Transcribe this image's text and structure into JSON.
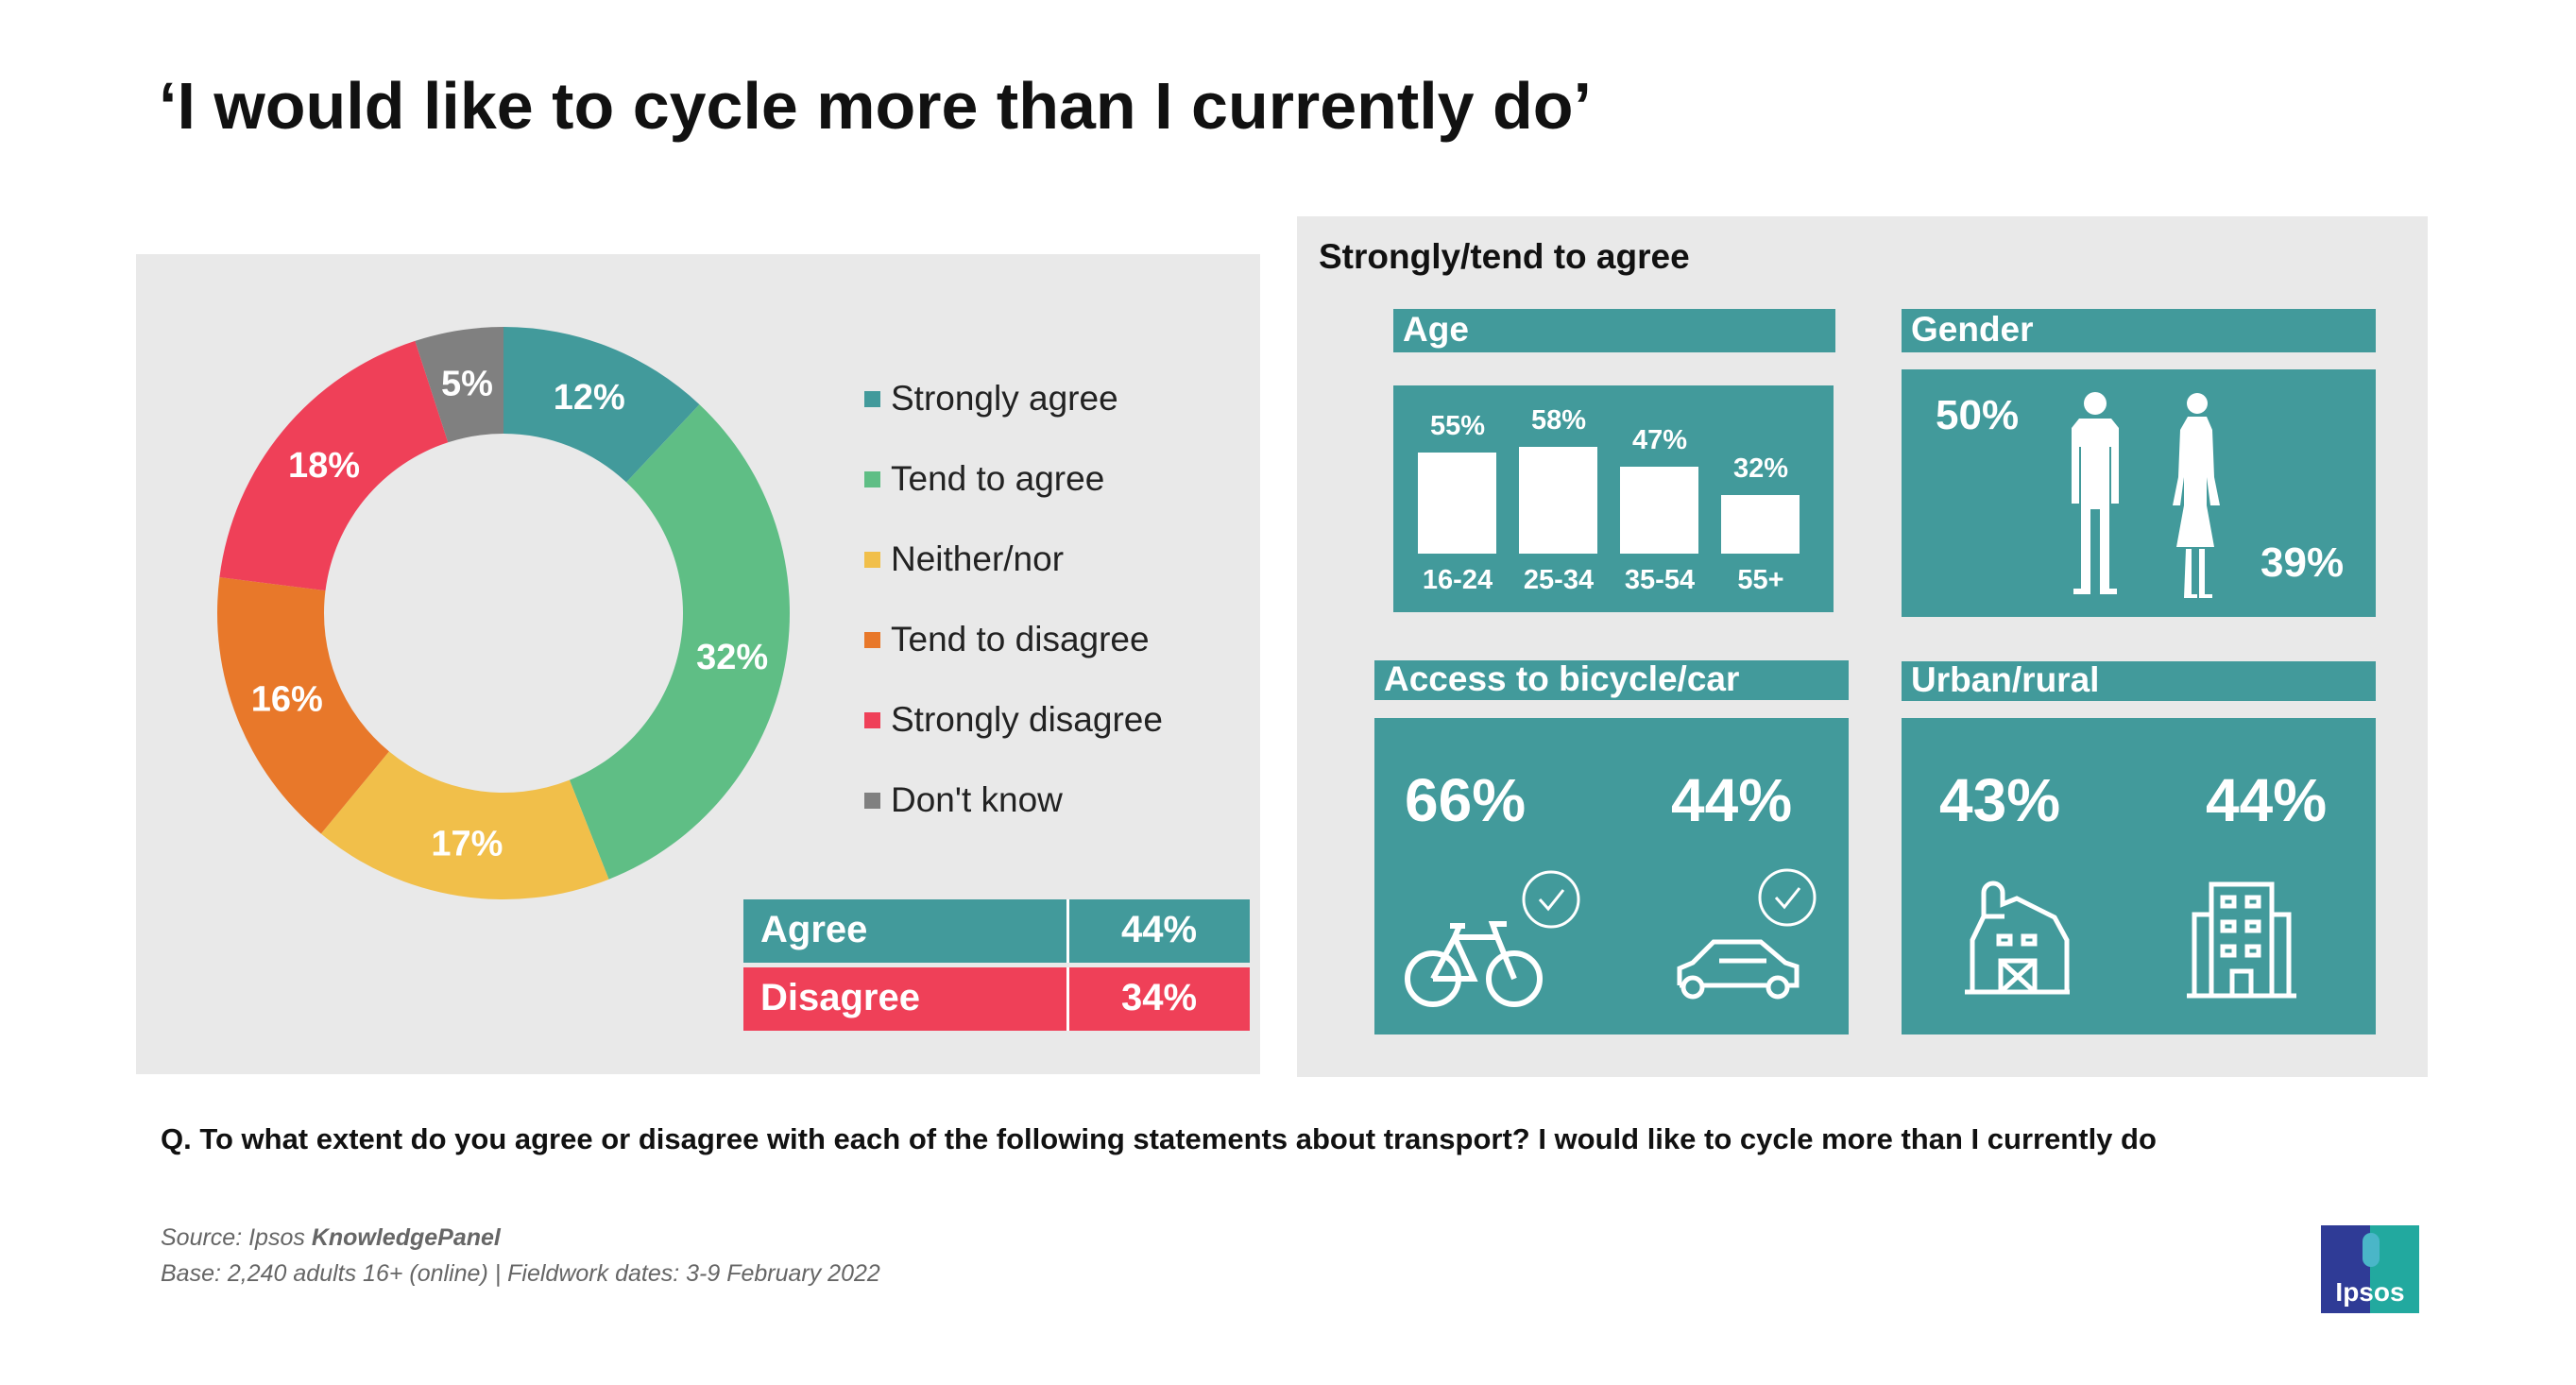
{
  "title": "‘I would like to cycle more than I currently do’",
  "chart_data": [
    {
      "type": "pie",
      "variant": "donut",
      "categories": [
        "Strongly agree",
        "Tend to agree",
        "Neither/nor",
        "Tend to disagree",
        "Strongly disagree",
        "Don't know"
      ],
      "values": [
        12,
        32,
        17,
        16,
        18,
        5
      ],
      "labels": [
        "12%",
        "32%",
        "17%",
        "16%",
        "18%",
        "5%"
      ],
      "colors": [
        "#429a9b",
        "#5fbe85",
        "#f1bf4a",
        "#e8782a",
        "#ef4058",
        "#808080"
      ],
      "legend_position": "right",
      "summary": [
        {
          "label": "Agree",
          "value": "44%",
          "color": "#429a9b"
        },
        {
          "label": "Disagree",
          "value": "34%",
          "color": "#ef4058"
        }
      ]
    },
    {
      "type": "bar",
      "title": "Age",
      "categories": [
        "16-24",
        "25-34",
        "35-54",
        "55+"
      ],
      "values": [
        55,
        58,
        47,
        32
      ],
      "labels": [
        "55%",
        "58%",
        "47%",
        "32%"
      ]
    }
  ],
  "right": {
    "heading": "Strongly/tend to agree",
    "gender": {
      "title": "Gender",
      "male": "50%",
      "female": "39%"
    },
    "access": {
      "title": "Access to bicycle/car",
      "bicycle": "66%",
      "car": "44%"
    },
    "urban": {
      "title": "Urban/rural",
      "rural": "43%",
      "urban": "44%"
    }
  },
  "question": "Q. To what extent do you agree or disagree with each of the following statements about transport? I would like to cycle more than I currently do",
  "source_prefix": "Source: Ipsos ",
  "source_bold": "KnowledgePanel",
  "base": "Base: 2,240 adults 16+ (online) | Fieldwork dates: 3-9 February 2022",
  "logo": "Ipsos"
}
